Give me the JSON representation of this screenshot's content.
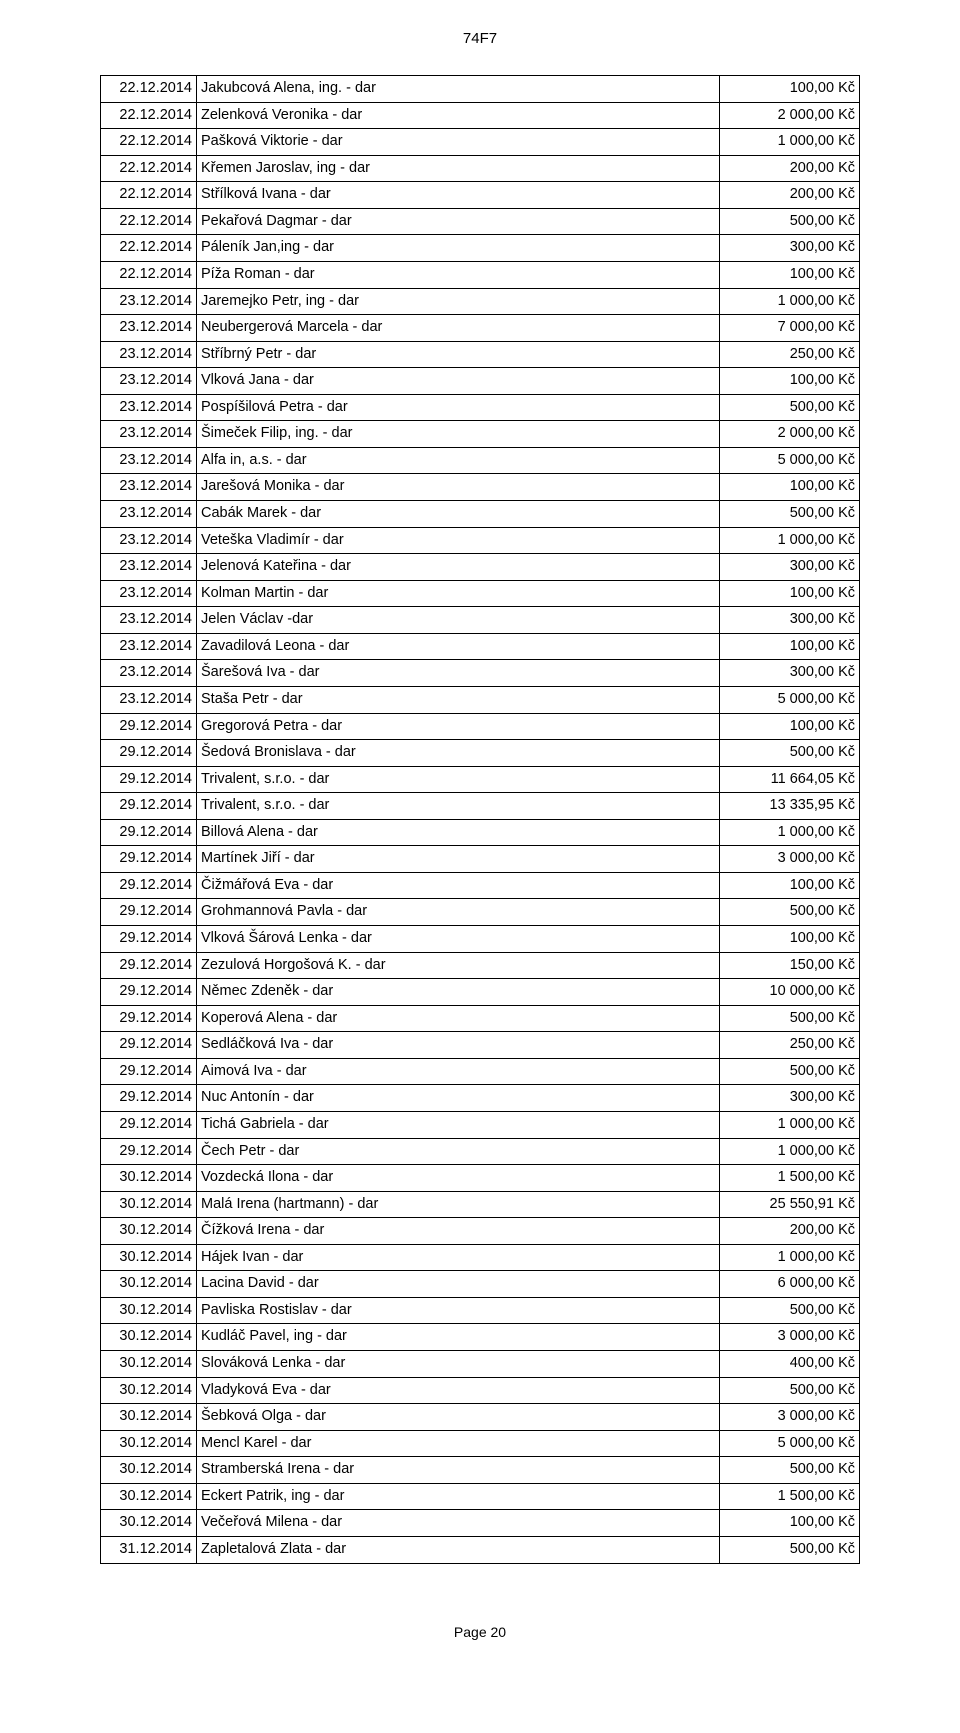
{
  "header": "74F7",
  "footer": "Page 20",
  "currency_suffix": " Kč",
  "rows": [
    {
      "date": "22.12.2014",
      "desc": "Jakubcová Alena, ing. - dar",
      "amount": "100,00"
    },
    {
      "date": "22.12.2014",
      "desc": "Zelenková Veronika - dar",
      "amount": "2 000,00"
    },
    {
      "date": "22.12.2014",
      "desc": "Pašková Viktorie - dar",
      "amount": "1 000,00"
    },
    {
      "date": "22.12.2014",
      "desc": "Křemen Jaroslav, ing - dar",
      "amount": "200,00"
    },
    {
      "date": "22.12.2014",
      "desc": "Střílková Ivana - dar",
      "amount": "200,00"
    },
    {
      "date": "22.12.2014",
      "desc": "Pekařová Dagmar - dar",
      "amount": "500,00"
    },
    {
      "date": "22.12.2014",
      "desc": "Páleník Jan,ing - dar",
      "amount": "300,00"
    },
    {
      "date": "22.12.2014",
      "desc": "Píža Roman - dar",
      "amount": "100,00"
    },
    {
      "date": "23.12.2014",
      "desc": "Jaremejko Petr, ing - dar",
      "amount": "1 000,00"
    },
    {
      "date": "23.12.2014",
      "desc": "Neubergerová Marcela - dar",
      "amount": "7 000,00"
    },
    {
      "date": "23.12.2014",
      "desc": "Stříbrný Petr - dar",
      "amount": "250,00"
    },
    {
      "date": "23.12.2014",
      "desc": "Vlková Jana - dar",
      "amount": "100,00"
    },
    {
      "date": "23.12.2014",
      "desc": "Pospíšilová Petra - dar",
      "amount": "500,00"
    },
    {
      "date": "23.12.2014",
      "desc": "Šimeček Filip, ing. - dar",
      "amount": "2 000,00"
    },
    {
      "date": "23.12.2014",
      "desc": "Alfa in, a.s. - dar",
      "amount": "5 000,00"
    },
    {
      "date": "23.12.2014",
      "desc": "Jarešová Monika - dar",
      "amount": "100,00"
    },
    {
      "date": "23.12.2014",
      "desc": "Cabák Marek - dar",
      "amount": "500,00"
    },
    {
      "date": "23.12.2014",
      "desc": "Veteška Vladimír - dar",
      "amount": "1 000,00"
    },
    {
      "date": "23.12.2014",
      "desc": "Jelenová Kateřina - dar",
      "amount": "300,00"
    },
    {
      "date": "23.12.2014",
      "desc": "Kolman Martin - dar",
      "amount": "100,00"
    },
    {
      "date": "23.12.2014",
      "desc": "Jelen Václav  -dar",
      "amount": "300,00"
    },
    {
      "date": "23.12.2014",
      "desc": "Zavadilová Leona - dar",
      "amount": "100,00"
    },
    {
      "date": "23.12.2014",
      "desc": "Šarešová Iva - dar",
      "amount": "300,00"
    },
    {
      "date": "23.12.2014",
      "desc": "Staša Petr - dar",
      "amount": "5 000,00"
    },
    {
      "date": "29.12.2014",
      "desc": "Gregorová Petra - dar",
      "amount": "100,00"
    },
    {
      "date": "29.12.2014",
      "desc": "Šedová Bronislava - dar",
      "amount": "500,00"
    },
    {
      "date": "29.12.2014",
      "desc": "Trivalent, s.r.o. - dar",
      "amount": "11 664,05"
    },
    {
      "date": "29.12.2014",
      "desc": "Trivalent, s.r.o. - dar",
      "amount": "13 335,95"
    },
    {
      "date": "29.12.2014",
      "desc": "Billová Alena - dar",
      "amount": "1 000,00"
    },
    {
      "date": "29.12.2014",
      "desc": "Martínek Jiří - dar",
      "amount": "3 000,00"
    },
    {
      "date": "29.12.2014",
      "desc": "Čižmářová Eva - dar",
      "amount": "100,00"
    },
    {
      "date": "29.12.2014",
      "desc": "Grohmannová Pavla - dar",
      "amount": "500,00"
    },
    {
      "date": "29.12.2014",
      "desc": "Vlková Šárová Lenka - dar",
      "amount": "100,00"
    },
    {
      "date": "29.12.2014",
      "desc": "Zezulová Horgošová K. - dar",
      "amount": "150,00"
    },
    {
      "date": "29.12.2014",
      "desc": "Němec Zdeněk - dar",
      "amount": "10 000,00"
    },
    {
      "date": "29.12.2014",
      "desc": "Koperová Alena - dar",
      "amount": "500,00"
    },
    {
      "date": "29.12.2014",
      "desc": "Sedláčková Iva - dar",
      "amount": "250,00"
    },
    {
      "date": "29.12.2014",
      "desc": "Aimová Iva - dar",
      "amount": "500,00"
    },
    {
      "date": "29.12.2014",
      "desc": "Nuc Antonín - dar",
      "amount": "300,00"
    },
    {
      "date": "29.12.2014",
      "desc": "Tichá Gabriela - dar",
      "amount": "1 000,00"
    },
    {
      "date": "29.12.2014",
      "desc": "Čech Petr - dar",
      "amount": "1 000,00"
    },
    {
      "date": "30.12.2014",
      "desc": "Vozdecká Ilona - dar",
      "amount": "1 500,00"
    },
    {
      "date": "30.12.2014",
      "desc": "Malá Irena (hartmann) - dar",
      "amount": "25 550,91"
    },
    {
      "date": "30.12.2014",
      "desc": "Čížková Irena - dar",
      "amount": "200,00"
    },
    {
      "date": "30.12.2014",
      "desc": "Hájek Ivan - dar",
      "amount": "1 000,00"
    },
    {
      "date": "30.12.2014",
      "desc": "Lacina David - dar",
      "amount": "6 000,00"
    },
    {
      "date": "30.12.2014",
      "desc": "Pavliska Rostislav - dar",
      "amount": "500,00"
    },
    {
      "date": "30.12.2014",
      "desc": "Kudláč Pavel, ing - dar",
      "amount": "3 000,00"
    },
    {
      "date": "30.12.2014",
      "desc": "Slováková Lenka - dar",
      "amount": "400,00"
    },
    {
      "date": "30.12.2014",
      "desc": "Vladyková Eva - dar",
      "amount": "500,00"
    },
    {
      "date": "30.12.2014",
      "desc": "Šebková Olga - dar",
      "amount": "3 000,00"
    },
    {
      "date": "30.12.2014",
      "desc": "Mencl Karel - dar",
      "amount": "5 000,00"
    },
    {
      "date": "30.12.2014",
      "desc": "Stramberská Irena - dar",
      "amount": "500,00"
    },
    {
      "date": "30.12.2014",
      "desc": "Eckert Patrik, ing - dar",
      "amount": "1 500,00"
    },
    {
      "date": "30.12.2014",
      "desc": "Večeřová Milena - dar",
      "amount": "100,00"
    },
    {
      "date": "31.12.2014",
      "desc": "Zapletalová Zlata - dar",
      "amount": "500,00"
    }
  ]
}
